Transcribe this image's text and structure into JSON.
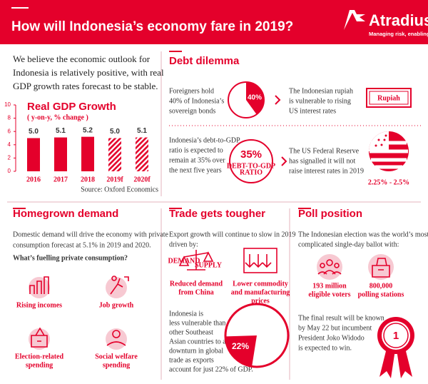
{
  "header": {
    "title": "How will Indonesia’s economy fare in 2019?",
    "brand": "Atradius",
    "tagline": "Managing risk, enabling trade"
  },
  "intro": [
    "We believe the economic outlook for",
    "Indonesia is relatively positive, with real",
    "GDP growth rates forecast to be stable."
  ],
  "chart_data": {
    "type": "bar",
    "title": "Real GDP Growth",
    "subtitle": "( y-on-y, % change )",
    "categories": [
      "2016",
      "2017",
      "2018",
      "2019f",
      "2020f"
    ],
    "values": [
      5.0,
      5.1,
      5.2,
      5.0,
      5.1
    ],
    "value_labels": [
      "5.0",
      "5.1",
      "5.2",
      "5.0",
      "5.1"
    ],
    "hatched": [
      false,
      false,
      false,
      true,
      true
    ],
    "color": "#e4002b",
    "ylim": [
      0,
      10
    ],
    "yticks": [
      0,
      2,
      4,
      6,
      8,
      10
    ],
    "source": "Source: Oxford Economics"
  },
  "debt_dilemma": {
    "heading": "Debt dilemma",
    "foreign_holding": {
      "text": [
        "Foreigners hold",
        "40% of Indonesia’s",
        "sovereign bonds"
      ],
      "share": {
        "value": 40,
        "label": "40%"
      }
    },
    "rupiah": {
      "text": [
        "The Indonesian rupiah",
        "is vulnerable to rising",
        "US interest rates"
      ],
      "icon_label": "Rupiah"
    },
    "debt_ratio": {
      "text": [
        "Indonesia’s debt-to-GDP",
        "ratio is expected to",
        "remain at 35% over",
        "the next five years"
      ],
      "ratio": "35%",
      "ratio_caption": [
        "DEBT-TO-GDP",
        "RATIO"
      ]
    },
    "fed": {
      "text": [
        "The US Federal Reserve",
        "has signalled it will not",
        "raise interest rates in 2019"
      ],
      "rate_range": "2.25% - 2.5%"
    }
  },
  "homegrown": {
    "heading": "Homegrown demand",
    "text": [
      "Domestic demand will drive the economy with private",
      "consumption forecast at 5.1% in 2019 and 2020."
    ],
    "question": "What’s fuelling private consumption?",
    "drivers": [
      [
        "Rising incomes"
      ],
      [
        "Job growth"
      ],
      [
        "Election-related",
        "spending"
      ],
      [
        "Social welfare",
        "spending"
      ]
    ]
  },
  "trade": {
    "heading": "Trade gets tougher",
    "text": [
      "Export growth will continue to slow in 2019",
      "driven by:"
    ],
    "scale_labels": [
      "DEMAND",
      "SUPPLY"
    ],
    "factors": [
      [
        "Reduced demand",
        "from China"
      ],
      [
        "Lower commodity",
        "and manufacturing",
        "prices"
      ]
    ],
    "exposure_text": [
      "Indonesia is",
      "less vulnerable than",
      "other Southeast",
      "Asian countries to a",
      "downturn in global",
      "trade as exports",
      "account for just 22% of GDP."
    ],
    "export_share": {
      "value": 22,
      "label": "22%"
    }
  },
  "poll": {
    "heading": "Poll position",
    "text": [
      "The Indonesian election was the world’s most",
      "complicated single-day ballot with:"
    ],
    "stats": [
      [
        "193 million",
        "eligible voters"
      ],
      [
        "800,000",
        "polling stations"
      ]
    ],
    "outcome": [
      "The final result will be known",
      "by May 22 but incumbent",
      "President Joko Widodo",
      "is expected to win."
    ],
    "medal": "1"
  }
}
